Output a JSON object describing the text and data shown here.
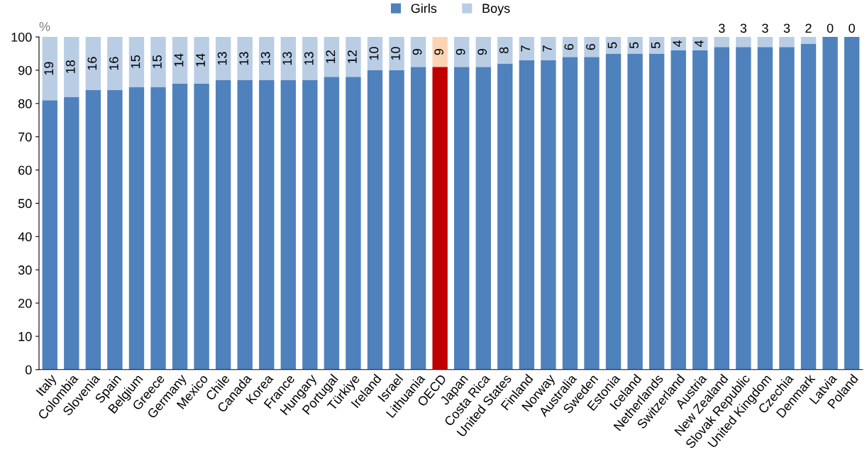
{
  "chart_data": {
    "type": "bar",
    "stacked": true,
    "ylabel": "%",
    "ylim": [
      0,
      100
    ],
    "yticks": [
      0,
      10,
      20,
      30,
      40,
      50,
      60,
      70,
      80,
      90,
      100
    ],
    "grid": false,
    "legend": "top",
    "categories": [
      "Italy",
      "Colombia",
      "Slovenia",
      "Spain",
      "Belgium",
      "Greece",
      "Germany",
      "Mexico",
      "Chile",
      "Canada",
      "Korea",
      "France",
      "Hungary",
      "Portugal",
      "Türkiye",
      "Ireland",
      "Israel",
      "Lithuania",
      "OECD",
      "Japan",
      "Costa Rica",
      "United States",
      "Finland",
      "Norway",
      "Australia",
      "Sweden",
      "Estonia",
      "Iceland",
      "Netherlands",
      "Switzerland",
      "Austria",
      "New Zealand",
      "Slovak Republic",
      "United Kingdom",
      "Czechia",
      "Denmark",
      "Latvia",
      "Poland"
    ],
    "series": [
      {
        "name": "Girls",
        "color": "#4f81bd",
        "colors": [
          "#4f81bd",
          "#4f81bd",
          "#4f81bd",
          "#4f81bd",
          "#4f81bd",
          "#4f81bd",
          "#4f81bd",
          "#4f81bd",
          "#4f81bd",
          "#4f81bd",
          "#4f81bd",
          "#4f81bd",
          "#4f81bd",
          "#4f81bd",
          "#4f81bd",
          "#4f81bd",
          "#4f81bd",
          "#4f81bd",
          "#c00000",
          "#4f81bd",
          "#4f81bd",
          "#4f81bd",
          "#4f81bd",
          "#4f81bd",
          "#4f81bd",
          "#4f81bd",
          "#4f81bd",
          "#4f81bd",
          "#4f81bd",
          "#4f81bd",
          "#4f81bd",
          "#4f81bd",
          "#4f81bd",
          "#4f81bd",
          "#4f81bd",
          "#4f81bd",
          "#4f81bd",
          "#4f81bd"
        ],
        "values": [
          81,
          82,
          84,
          84,
          85,
          85,
          86,
          86,
          87,
          87,
          87,
          87,
          87,
          88,
          88,
          90,
          90,
          91,
          91,
          91,
          91,
          92,
          93,
          93,
          94,
          94,
          95,
          95,
          95,
          96,
          96,
          97,
          97,
          97,
          97,
          98,
          100,
          100
        ]
      },
      {
        "name": "Boys",
        "color": "#b9cde5",
        "colors": [
          "#b9cde5",
          "#b9cde5",
          "#b9cde5",
          "#b9cde5",
          "#b9cde5",
          "#b9cde5",
          "#b9cde5",
          "#b9cde5",
          "#b9cde5",
          "#b9cde5",
          "#b9cde5",
          "#b9cde5",
          "#b9cde5",
          "#b9cde5",
          "#b9cde5",
          "#b9cde5",
          "#b9cde5",
          "#b9cde5",
          "#fbd4b4",
          "#b9cde5",
          "#b9cde5",
          "#b9cde5",
          "#b9cde5",
          "#b9cde5",
          "#b9cde5",
          "#b9cde5",
          "#b9cde5",
          "#b9cde5",
          "#b9cde5",
          "#b9cde5",
          "#b9cde5",
          "#b9cde5",
          "#b9cde5",
          "#b9cde5",
          "#b9cde5",
          "#b9cde5",
          "#b9cde5",
          "#b9cde5"
        ],
        "values": [
          19,
          18,
          16,
          16,
          15,
          15,
          14,
          14,
          13,
          13,
          13,
          13,
          13,
          12,
          12,
          10,
          10,
          9,
          9,
          9,
          9,
          8,
          7,
          7,
          6,
          6,
          5,
          5,
          5,
          4,
          4,
          3,
          3,
          3,
          3,
          2,
          0,
          0
        ],
        "value_labels": [
          "19",
          "18",
          "16",
          "16",
          "15",
          "15",
          "14",
          "14",
          "13",
          "13",
          "13",
          "13",
          "13",
          "12",
          "12",
          "10",
          "10",
          "9",
          "9",
          "9",
          "9",
          "8",
          "7",
          "7",
          "6",
          "6",
          "5",
          "5",
          "5",
          "4",
          "4",
          "3",
          "3",
          "3",
          "3",
          "2",
          "0",
          "0"
        ]
      }
    ]
  }
}
